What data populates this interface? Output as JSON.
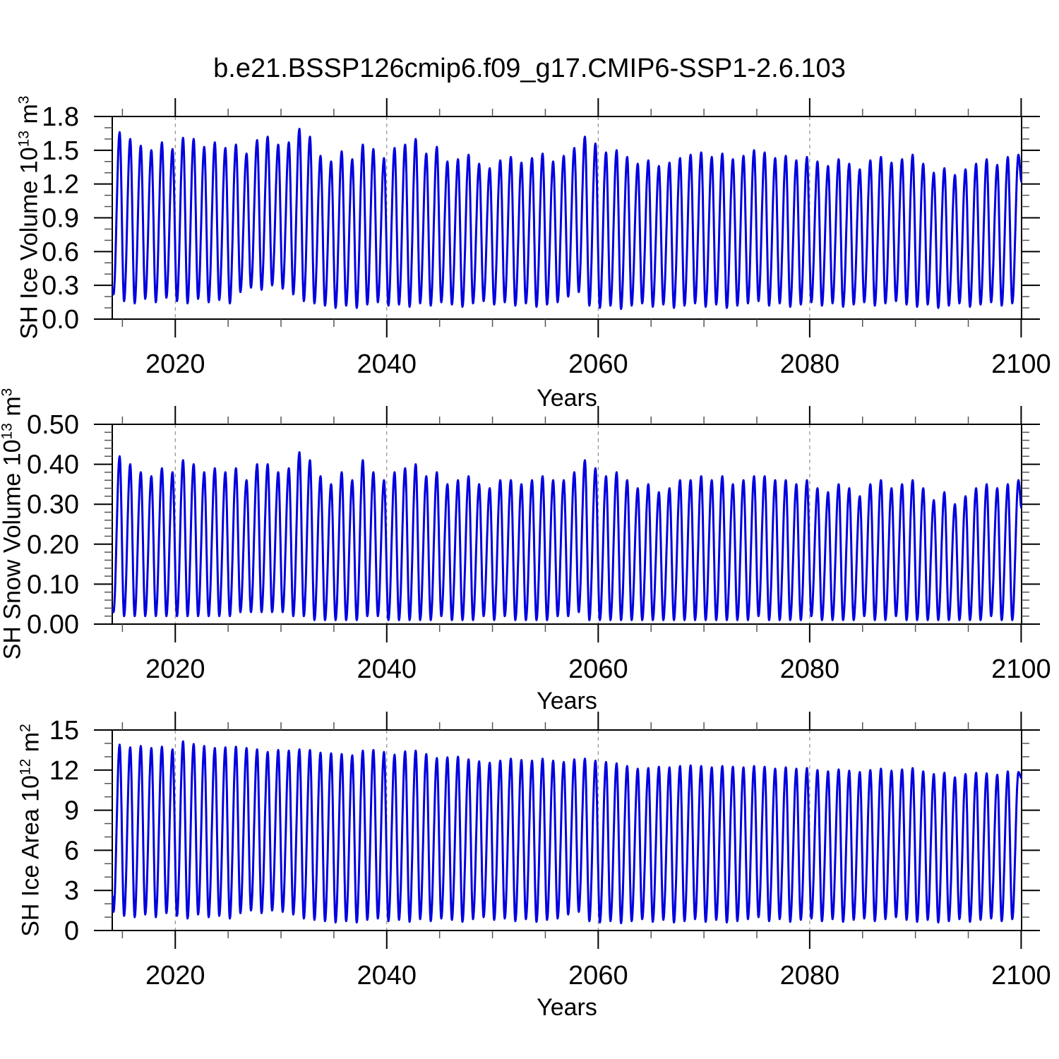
{
  "title": "b.e21.BSSP126cmip6.f09_g17.CMIP6-SSP1-2.6.103",
  "line_color": "#0000e0",
  "grid_color": "#787878",
  "axis_color": "#000000",
  "minor_tick_color": "#555555",
  "panels": [
    {
      "ylabel_base": "SH Ice Volume 10",
      "ylabel_exp": "13",
      "ylabel_unit": " m",
      "ylabel_unit_exp": "3",
      "xlabel": "Years"
    },
    {
      "ylabel_base": "SH Snow Volume 10",
      "ylabel_exp": "13",
      "ylabel_unit": " m",
      "ylabel_unit_exp": "3",
      "xlabel": "Years"
    },
    {
      "ylabel_base": "SH Ice Area 10",
      "ylabel_exp": "12",
      "ylabel_unit": " m",
      "ylabel_unit_exp": "2",
      "xlabel": "Years"
    }
  ],
  "chart_data": [
    {
      "type": "line",
      "title": "b.e21.BSSP126cmip6.f09_g17.CMIP6-SSP1-2.6.103",
      "ylabel": "SH Ice Volume 10^13 m^3",
      "xlabel": "Years",
      "xlim": [
        2014.04,
        2100.04
      ],
      "ylim": [
        0,
        1.8
      ],
      "grid": "vertical-dashed",
      "legend": "none",
      "xticks": {
        "major": [
          2020,
          2040,
          2060,
          2080,
          2100
        ],
        "labels": [
          "2020",
          "2040",
          "2060",
          "2080",
          "2100"
        ],
        "minor_step": 5
      },
      "yticks": {
        "major": [
          0,
          0.3,
          0.6,
          0.9,
          1.2,
          1.5,
          1.8
        ],
        "labels": [
          "0.0",
          "0.3",
          "0.6",
          "0.9",
          "1.2",
          "1.5",
          "1.8"
        ],
        "minor_step": 0.1
      },
      "grid_years": [
        2020,
        2040,
        2060,
        2080
      ],
      "seasonal": {
        "start_year": 2014,
        "trough_phase": 0.16,
        "peak_phase": 0.74,
        "start_value": 0.28,
        "end_value": 1.22
      },
      "annual_max": [
        1.66,
        1.6,
        1.54,
        1.5,
        1.57,
        1.51,
        1.61,
        1.6,
        1.53,
        1.57,
        1.52,
        1.55,
        1.47,
        1.59,
        1.62,
        1.55,
        1.57,
        1.69,
        1.62,
        1.45,
        1.4,
        1.49,
        1.42,
        1.55,
        1.51,
        1.43,
        1.52,
        1.55,
        1.6,
        1.47,
        1.53,
        1.4,
        1.42,
        1.46,
        1.38,
        1.34,
        1.41,
        1.44,
        1.39,
        1.43,
        1.47,
        1.4,
        1.45,
        1.52,
        1.62,
        1.56,
        1.48,
        1.5,
        1.44,
        1.38,
        1.41,
        1.36,
        1.39,
        1.43,
        1.46,
        1.48,
        1.44,
        1.47,
        1.42,
        1.45,
        1.5,
        1.48,
        1.43,
        1.45,
        1.41,
        1.44,
        1.4,
        1.36,
        1.42,
        1.38,
        1.33,
        1.41,
        1.44,
        1.39,
        1.42,
        1.46,
        1.38,
        1.3,
        1.34,
        1.28,
        1.33,
        1.38,
        1.42,
        1.37,
        1.44,
        1.46
      ],
      "annual_min": [
        0.22,
        0.16,
        0.14,
        0.18,
        0.15,
        0.19,
        0.16,
        0.14,
        0.18,
        0.15,
        0.17,
        0.14,
        0.24,
        0.28,
        0.26,
        0.3,
        0.27,
        0.22,
        0.16,
        0.14,
        0.12,
        0.1,
        0.12,
        0.1,
        0.13,
        0.15,
        0.12,
        0.13,
        0.11,
        0.14,
        0.12,
        0.15,
        0.13,
        0.11,
        0.14,
        0.16,
        0.13,
        0.15,
        0.12,
        0.14,
        0.11,
        0.13,
        0.15,
        0.2,
        0.24,
        0.12,
        0.1,
        0.12,
        0.09,
        0.12,
        0.14,
        0.11,
        0.13,
        0.1,
        0.12,
        0.14,
        0.11,
        0.13,
        0.1,
        0.12,
        0.14,
        0.16,
        0.12,
        0.14,
        0.11,
        0.13,
        0.15,
        0.12,
        0.14,
        0.11,
        0.13,
        0.15,
        0.12,
        0.14,
        0.16,
        0.13,
        0.11,
        0.13,
        0.1,
        0.12,
        0.14,
        0.11,
        0.13,
        0.15,
        0.12,
        0.14
      ]
    },
    {
      "type": "line",
      "ylabel": "SH Snow Volume 10^13 m^3",
      "xlabel": "Years",
      "xlim": [
        2014.04,
        2100.04
      ],
      "ylim": [
        0,
        0.5
      ],
      "grid": "vertical-dashed",
      "legend": "none",
      "xticks": {
        "major": [
          2020,
          2040,
          2060,
          2080,
          2100
        ],
        "labels": [
          "2020",
          "2040",
          "2060",
          "2080",
          "2100"
        ],
        "minor_step": 5
      },
      "yticks": {
        "major": [
          0,
          0.1,
          0.2,
          0.3,
          0.4,
          0.5
        ],
        "labels": [
          "0.00",
          "0.10",
          "0.20",
          "0.30",
          "0.40",
          "0.50"
        ],
        "minor_step": 0.02
      },
      "grid_years": [
        2020,
        2040,
        2060,
        2080
      ],
      "seasonal": {
        "start_year": 2014,
        "trough_phase": 0.16,
        "peak_phase": 0.74,
        "start_value": 0.04,
        "end_value": 0.29
      },
      "annual_max": [
        0.42,
        0.4,
        0.38,
        0.37,
        0.39,
        0.38,
        0.41,
        0.4,
        0.38,
        0.39,
        0.38,
        0.39,
        0.36,
        0.4,
        0.4,
        0.38,
        0.39,
        0.43,
        0.41,
        0.37,
        0.35,
        0.38,
        0.36,
        0.41,
        0.38,
        0.36,
        0.38,
        0.39,
        0.4,
        0.37,
        0.38,
        0.35,
        0.36,
        0.37,
        0.35,
        0.34,
        0.36,
        0.36,
        0.35,
        0.36,
        0.37,
        0.36,
        0.36,
        0.38,
        0.41,
        0.39,
        0.37,
        0.38,
        0.36,
        0.34,
        0.35,
        0.33,
        0.34,
        0.36,
        0.36,
        0.37,
        0.36,
        0.37,
        0.35,
        0.36,
        0.37,
        0.37,
        0.36,
        0.36,
        0.35,
        0.36,
        0.34,
        0.33,
        0.35,
        0.34,
        0.32,
        0.35,
        0.36,
        0.34,
        0.35,
        0.36,
        0.34,
        0.31,
        0.33,
        0.3,
        0.32,
        0.34,
        0.35,
        0.34,
        0.35,
        0.36
      ],
      "annual_min": [
        0.03,
        0.02,
        0.02,
        0.02,
        0.02,
        0.02,
        0.02,
        0.02,
        0.02,
        0.02,
        0.02,
        0.02,
        0.03,
        0.03,
        0.03,
        0.03,
        0.03,
        0.02,
        0.02,
        0.01,
        0.01,
        0.01,
        0.01,
        0.01,
        0.02,
        0.02,
        0.01,
        0.01,
        0.01,
        0.01,
        0.01,
        0.02,
        0.01,
        0.01,
        0.01,
        0.02,
        0.01,
        0.02,
        0.01,
        0.01,
        0.01,
        0.01,
        0.02,
        0.02,
        0.03,
        0.01,
        0.01,
        0.01,
        0.01,
        0.01,
        0.01,
        0.01,
        0.01,
        0.01,
        0.01,
        0.01,
        0.01,
        0.01,
        0.01,
        0.01,
        0.01,
        0.02,
        0.01,
        0.01,
        0.01,
        0.01,
        0.02,
        0.01,
        0.01,
        0.01,
        0.01,
        0.02,
        0.01,
        0.01,
        0.02,
        0.01,
        0.01,
        0.01,
        0.01,
        0.01,
        0.01,
        0.01,
        0.01,
        0.02,
        0.01,
        0.01
      ]
    },
    {
      "type": "line",
      "ylabel": "SH Ice Area 10^12 m^2",
      "xlabel": "Years",
      "xlim": [
        2014.04,
        2100.04
      ],
      "ylim": [
        0,
        15
      ],
      "grid": "vertical-dashed",
      "legend": "none",
      "xticks": {
        "major": [
          2020,
          2040,
          2060,
          2080,
          2100
        ],
        "labels": [
          "2020",
          "2040",
          "2060",
          "2080",
          "2100"
        ],
        "minor_step": 5
      },
      "yticks": {
        "major": [
          0,
          3,
          6,
          9,
          12,
          15
        ],
        "labels": [
          "0",
          "3",
          "6",
          "9",
          "12",
          "15"
        ],
        "minor_step": 1
      },
      "grid_years": [
        2020,
        2040,
        2060,
        2080
      ],
      "seasonal": {
        "start_year": 2014,
        "trough_phase": 0.16,
        "peak_phase": 0.74,
        "start_value": 2.6,
        "end_value": 11.4
      },
      "annual_max": [
        13.9,
        13.7,
        13.8,
        13.65,
        13.75,
        13.55,
        14.15,
        13.95,
        13.8,
        13.65,
        13.7,
        13.75,
        13.65,
        13.55,
        13.35,
        13.5,
        13.45,
        13.55,
        13.5,
        13.3,
        13.25,
        13.2,
        13.1,
        13.45,
        13.5,
        13.35,
        13.15,
        13.4,
        13.45,
        13.2,
        12.9,
        12.95,
        13.0,
        12.8,
        12.65,
        12.55,
        12.7,
        12.85,
        12.75,
        12.7,
        12.85,
        12.7,
        12.6,
        12.8,
        12.85,
        12.7,
        12.6,
        12.5,
        12.3,
        12.1,
        12.15,
        12.25,
        12.2,
        12.3,
        12.35,
        12.3,
        12.2,
        12.3,
        12.25,
        12.2,
        12.3,
        12.25,
        12.1,
        12.2,
        12.1,
        12.15,
        12.0,
        11.9,
        12.05,
        11.95,
        11.85,
        12.0,
        12.1,
        11.95,
        12.05,
        12.15,
        11.9,
        11.7,
        11.8,
        11.45,
        11.7,
        11.8,
        11.75,
        11.65,
        11.9,
        11.85
      ],
      "annual_min": [
        1.4,
        1.1,
        1.0,
        1.2,
        1.0,
        1.3,
        1.1,
        0.9,
        1.2,
        1.0,
        1.1,
        0.9,
        1.3,
        1.5,
        1.3,
        1.5,
        1.4,
        1.2,
        0.9,
        0.8,
        0.7,
        0.6,
        0.7,
        0.6,
        0.8,
        0.9,
        0.7,
        0.8,
        0.65,
        0.85,
        0.7,
        0.9,
        0.8,
        0.65,
        0.85,
        1.0,
        0.8,
        0.9,
        0.7,
        0.85,
        0.65,
        0.8,
        0.9,
        1.2,
        1.4,
        0.7,
        0.6,
        0.7,
        0.55,
        0.7,
        0.85,
        0.65,
        0.8,
        0.6,
        0.7,
        0.85,
        0.65,
        0.8,
        0.6,
        0.7,
        0.85,
        1.0,
        0.7,
        0.85,
        0.65,
        0.8,
        0.9,
        0.7,
        0.85,
        0.65,
        0.8,
        0.9,
        0.7,
        0.85,
        1.0,
        0.8,
        0.65,
        0.8,
        0.6,
        0.7,
        0.85,
        0.65,
        0.8,
        0.9,
        0.7,
        0.85
      ]
    }
  ]
}
